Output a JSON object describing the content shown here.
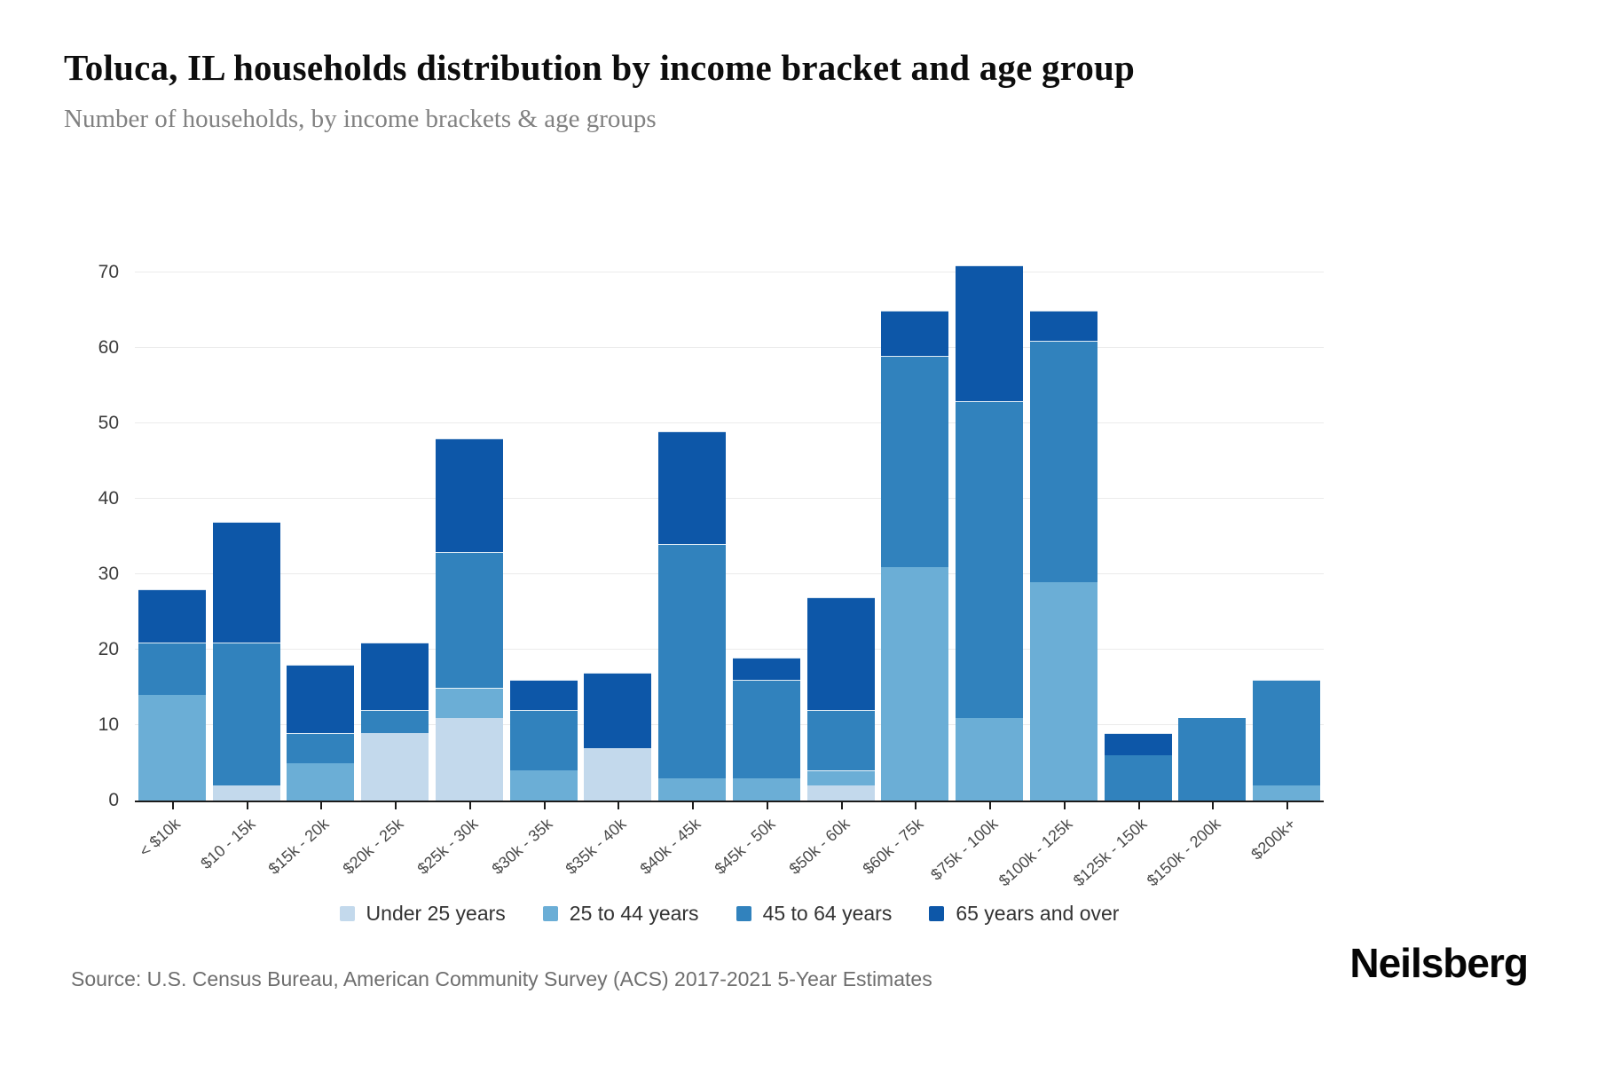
{
  "header": {
    "title": "Toluca, IL households distribution by income bracket and age group",
    "subtitle": "Number of households, by income brackets & age groups"
  },
  "footer": {
    "source": "Source: U.S. Census Bureau, American Community Survey (ACS) 2017-2021 5-Year Estimates",
    "brand": "Neilsberg"
  },
  "chart_data": {
    "type": "bar",
    "stacked": true,
    "title": "Toluca, IL households distribution by income bracket and age group",
    "ylabel": "Number of households",
    "categories": [
      "< $10k",
      "$10 - 15k",
      "$15k - 20k",
      "$20k - 25k",
      "$25k - 30k",
      "$30k - 35k",
      "$35k - 40k",
      "$40k - 45k",
      "$45k - 50k",
      "$50k - 60k",
      "$60k - 75k",
      "$75k - 100k",
      "$100k - 125k",
      "$125k - 150k",
      "$150k - 200k",
      "$200k+"
    ],
    "series": [
      {
        "name": "Under 25 years",
        "color": "#c3d9ec",
        "values": [
          0,
          2,
          0,
          9,
          11,
          0,
          7,
          0,
          0,
          2,
          0,
          0,
          0,
          0,
          0,
          0
        ]
      },
      {
        "name": "25 to 44 years",
        "color": "#6baed6",
        "values": [
          14,
          0,
          5,
          0,
          4,
          4,
          0,
          3,
          3,
          2,
          31,
          11,
          29,
          0,
          0,
          2
        ]
      },
      {
        "name": "45 to 64 years",
        "color": "#3182bd",
        "values": [
          7,
          19,
          4,
          3,
          18,
          8,
          0,
          31,
          13,
          8,
          28,
          42,
          32,
          6,
          11,
          14
        ]
      },
      {
        "name": "65 years and over",
        "color": "#0d57a8",
        "values": [
          7,
          16,
          9,
          9,
          15,
          4,
          10,
          15,
          3,
          15,
          6,
          18,
          4,
          3,
          0,
          0
        ]
      }
    ],
    "totals": [
      28,
      37,
      18,
      21,
      48,
      16,
      17,
      49,
      19,
      27,
      65,
      71,
      65,
      9,
      11,
      16
    ],
    "ylim": [
      0,
      70
    ],
    "yticks": [
      0,
      10,
      20,
      30,
      40,
      50,
      60,
      70
    ],
    "grid": true,
    "legend_position": "bottom"
  }
}
